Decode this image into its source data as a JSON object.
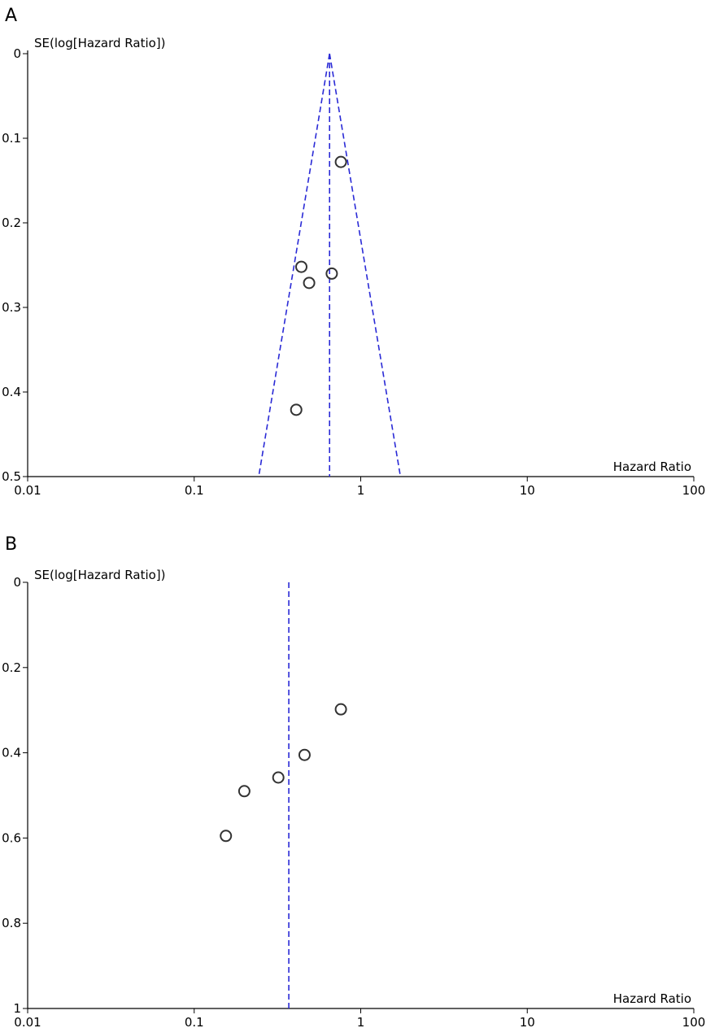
{
  "chart_data": [
    {
      "panel_label": "A",
      "type": "scatter",
      "subtype": "funnel-plot",
      "xlabel": "Hazard Ratio",
      "ylabel": "SE(log[Hazard Ratio])",
      "xscale": "log",
      "xlim": [
        0.01,
        100
      ],
      "x_ticks": [
        0.01,
        0.1,
        1,
        10,
        100
      ],
      "x_tick_labels": [
        "0.01",
        "0.1",
        "1",
        "10",
        "100"
      ],
      "ylim": [
        0,
        0.5
      ],
      "y_inverted": true,
      "y_ticks": [
        0,
        0.1,
        0.2,
        0.3,
        0.4,
        0.5
      ],
      "y_tick_labels": [
        "0",
        "0.1",
        "0.2",
        "0.3",
        "0.4",
        "0.5"
      ],
      "pooled_estimate": 0.65,
      "show_funnel": true,
      "line_color": "#2a2ad6",
      "points": [
        {
          "x": 0.76,
          "y": 0.128
        },
        {
          "x": 0.44,
          "y": 0.252
        },
        {
          "x": 0.67,
          "y": 0.26
        },
        {
          "x": 0.49,
          "y": 0.271
        },
        {
          "x": 0.41,
          "y": 0.421
        }
      ]
    },
    {
      "panel_label": "B",
      "type": "scatter",
      "subtype": "funnel-plot",
      "xlabel": "Hazard Ratio",
      "ylabel": "SE(log[Hazard Ratio])",
      "xscale": "log",
      "xlim": [
        0.01,
        100
      ],
      "x_ticks": [
        0.01,
        0.1,
        1,
        10,
        100
      ],
      "x_tick_labels": [
        "0.01",
        "0.1",
        "1",
        "10",
        "100"
      ],
      "ylim": [
        0,
        1
      ],
      "y_inverted": true,
      "y_ticks": [
        0,
        0.2,
        0.4,
        0.6,
        0.8,
        1
      ],
      "y_tick_labels": [
        "0",
        "0.2",
        "0.4",
        "0.6",
        "0.8",
        "1"
      ],
      "pooled_estimate": 0.37,
      "show_funnel": false,
      "line_color": "#2a2ad6",
      "points": [
        {
          "x": 0.76,
          "y": 0.298
        },
        {
          "x": 0.46,
          "y": 0.405
        },
        {
          "x": 0.32,
          "y": 0.458
        },
        {
          "x": 0.2,
          "y": 0.49
        },
        {
          "x": 0.155,
          "y": 0.595
        }
      ]
    }
  ]
}
